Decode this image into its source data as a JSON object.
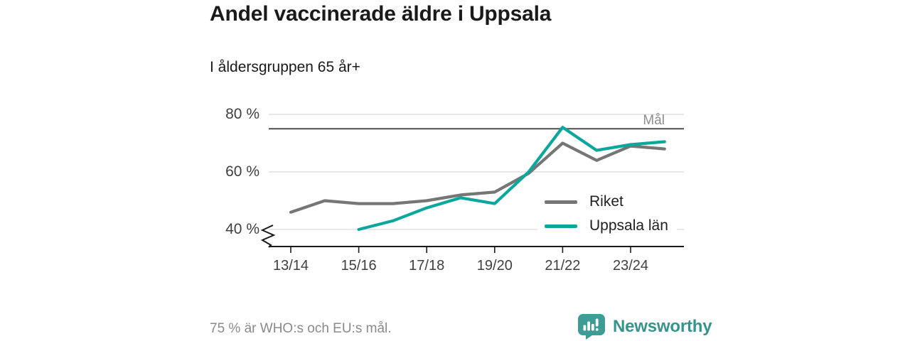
{
  "header": {
    "title": "Andel vaccinerade äldre i Uppsala",
    "subtitle": "I åldersgruppen 65 år+"
  },
  "chart_data": {
    "type": "line",
    "title": "Andel vaccinerade äldre i Uppsala",
    "subtitle": "I åldersgruppen 65 år+",
    "unit": "%",
    "seasons": [
      "13/14",
      "14/15",
      "15/16",
      "16/17",
      "17/18",
      "18/19",
      "19/20",
      "20/21",
      "21/22",
      "22/23",
      "23/24",
      "24/25"
    ],
    "x_tick_labels": [
      "13/14",
      "15/16",
      "17/18",
      "19/20",
      "21/22",
      "23/24"
    ],
    "series": [
      {
        "name": "Riket",
        "color": "#767676",
        "values": [
          46,
          50,
          49,
          49,
          50,
          52,
          53,
          59.5,
          70,
          64,
          69,
          68
        ]
      },
      {
        "name": "Uppsala län",
        "color": "#0ca79c",
        "values": [
          null,
          null,
          40,
          43,
          47.5,
          51,
          49,
          60,
          75.5,
          67.5,
          69.5,
          70.5
        ]
      }
    ],
    "y_ticks": [
      {
        "value": 80,
        "label": "80 %"
      },
      {
        "value": 60,
        "label": "60 %"
      },
      {
        "value": 40,
        "label": "40 %"
      }
    ],
    "goal": {
      "value": 75,
      "label": "Mål"
    },
    "ylim": [
      40,
      80
    ],
    "axis_break": true,
    "grid": true,
    "legend_position": "inside-right"
  },
  "footer": {
    "note": "75 % är WHO:s och EU:s mål.",
    "brand": "Newsworthy"
  },
  "icons": {
    "logo": "newsworthy-logo-icon"
  },
  "colors": {
    "gridline": "#dadada",
    "axis": "#1a1a1a",
    "goal_line": "#4d4d4d",
    "goal_label": "#8e8e8e",
    "series_gray": "#767676",
    "series_teal": "#0ca79c",
    "brand_teal": "#36948c",
    "logo_teal": "#3e9c94"
  }
}
